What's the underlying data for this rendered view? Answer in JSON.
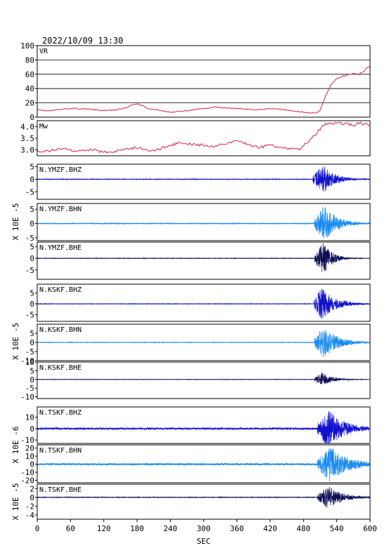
{
  "header": {
    "datetime": "2022/10/09  13:30"
  },
  "colors": {
    "frame": "#000000",
    "grid": "#000000",
    "param_trace": "#d6204a",
    "bhz": "#1010cc",
    "bhn": "#1a8cf0",
    "bhe": "#0c0c55"
  },
  "chart_data": {
    "type": "line",
    "xlabel": "SEC",
    "xlim": [
      0,
      600
    ],
    "xticks": [
      "0",
      "60",
      "120",
      "180",
      "240",
      "300",
      "360",
      "420",
      "480",
      "540",
      "600"
    ],
    "panels": [
      {
        "label": "VR",
        "ylim": [
          0,
          100
        ],
        "yticks": [
          "0",
          "20",
          "40",
          "60",
          "80",
          "100"
        ],
        "grid": true,
        "color_key": "param_trace",
        "series": {
          "name": "VR",
          "x": [
            0,
            20,
            40,
            60,
            80,
            100,
            120,
            140,
            160,
            170,
            180,
            190,
            200,
            220,
            240,
            260,
            280,
            300,
            320,
            340,
            360,
            380,
            400,
            420,
            440,
            460,
            480,
            490,
            500,
            505,
            510,
            515,
            520,
            525,
            530,
            540,
            550,
            560,
            570,
            580,
            590,
            595,
            600
          ],
          "values": [
            10,
            9,
            11,
            12,
            12,
            11,
            9,
            10,
            13,
            17,
            19,
            16,
            12,
            10,
            7,
            8,
            10,
            12,
            14,
            13,
            12,
            11,
            10,
            12,
            11,
            9,
            7,
            6,
            6,
            7,
            10,
            20,
            30,
            38,
            46,
            54,
            57,
            59,
            61,
            60,
            65,
            70,
            71
          ]
        }
      },
      {
        "label": "Mw",
        "ylim": [
          2.75,
          4.25
        ],
        "yticks": [
          "3.0",
          "3.5",
          "4.0"
        ],
        "grid": false,
        "color_key": "param_trace",
        "series": {
          "name": "Mw",
          "x": [
            0,
            20,
            40,
            60,
            80,
            100,
            120,
            140,
            160,
            180,
            200,
            210,
            220,
            240,
            260,
            280,
            300,
            320,
            340,
            360,
            380,
            400,
            420,
            440,
            460,
            470,
            480,
            490,
            500,
            510,
            520,
            530,
            540,
            550,
            560,
            570,
            580,
            590,
            600
          ],
          "values": [
            2.9,
            2.95,
            3.05,
            3.0,
            2.95,
            3.0,
            2.9,
            2.95,
            3.05,
            3.1,
            2.95,
            3.0,
            3.05,
            3.2,
            3.3,
            3.25,
            3.2,
            3.15,
            3.3,
            3.35,
            3.25,
            3.1,
            3.2,
            3.1,
            3.05,
            3.0,
            3.2,
            3.4,
            3.6,
            3.9,
            4.1,
            4.15,
            4.15,
            4.1,
            4.1,
            4.05,
            4.15,
            4.1,
            4.05
          ]
        }
      },
      {
        "label": "N.YMZF.BHZ",
        "unit": "X 10E -5",
        "ylim": [
          -8,
          6
        ],
        "yticks": [
          "5",
          "0",
          "-5"
        ],
        "grid": false,
        "color_key": "bhz",
        "series": {
          "name": "N.YMZF.BHZ",
          "noise": 0.12,
          "onset": 497,
          "peak_x": 515,
          "peak_amp": 6.0,
          "decay": 22
        }
      },
      {
        "label": "N.YMZF.BHN",
        "unit": "X 10E -5",
        "ylim": [
          -6,
          7
        ],
        "yticks": [
          "5",
          "0",
          "-5"
        ],
        "grid": false,
        "color_key": "bhn",
        "series": {
          "name": "N.YMZF.BHN",
          "noise": 0.15,
          "onset": 500,
          "peak_x": 517,
          "peak_amp": 6.5,
          "decay": 24
        }
      },
      {
        "label": "N.YMZF.BHE",
        "unit": "X 10E -5",
        "ylim": [
          -9,
          7
        ],
        "yticks": [
          "5",
          "0",
          "-5"
        ],
        "grid": false,
        "color_key": "bhe",
        "series": {
          "name": "N.YMZF.BHE",
          "noise": 0.1,
          "onset": 500,
          "peak_x": 516,
          "peak_amp": 7.0,
          "decay": 16
        }
      },
      {
        "label": "N.KSKF.BHZ",
        "unit": "X 10E -5",
        "ylim": [
          -8,
          9
        ],
        "yticks": [
          "5",
          "0",
          "-5"
        ],
        "grid": false,
        "color_key": "bhz",
        "series": {
          "name": "N.KSKF.BHZ",
          "noise": 0.12,
          "onset": 499,
          "peak_x": 512,
          "peak_amp": 7.5,
          "decay": 26
        }
      },
      {
        "label": "N.KSKF.BHN",
        "unit": "X 10E -5",
        "ylim": [
          -10,
          10
        ],
        "yticks": [
          "5",
          "0",
          "-5",
          "-10"
        ],
        "grid": false,
        "color_key": "bhn",
        "series": {
          "name": "N.KSKF.BHN",
          "noise": 0.15,
          "onset": 500,
          "peak_x": 516,
          "peak_amp": 9.0,
          "decay": 26
        }
      },
      {
        "label": "N.KSKF.BHE",
        "unit": "X 10E -5",
        "ylim": [
          -11,
          10
        ],
        "yticks": [
          "10",
          "5",
          "0",
          "-5",
          "-10"
        ],
        "grid": false,
        "color_key": "bhe",
        "series": {
          "name": "N.KSKF.BHE",
          "noise": 0.1,
          "onset": 500,
          "peak_x": 513,
          "peak_amp": 4.0,
          "decay": 20
        }
      },
      {
        "label": "N.TSKF.BHZ",
        "unit": "X 10E -6",
        "ylim": [
          -13,
          19
        ],
        "yticks": [
          "10",
          "0",
          "-10"
        ],
        "grid": false,
        "color_key": "bhz",
        "series": {
          "name": "N.TSKF.BHZ",
          "noise": 0.9,
          "onset": 505,
          "peak_x": 525,
          "peak_amp": 17.0,
          "decay": 30
        }
      },
      {
        "label": "N.TSKF.BHN",
        "unit": "X 10E -6",
        "ylim": [
          -23,
          24
        ],
        "yticks": [
          "20",
          "10",
          "0",
          "-10",
          "-20"
        ],
        "grid": false,
        "color_key": "bhn",
        "series": {
          "name": "N.TSKF.BHN",
          "noise": 1.2,
          "onset": 505,
          "peak_x": 528,
          "peak_amp": 22.0,
          "decay": 34
        }
      },
      {
        "label": "N.TSKF.BHE",
        "unit": "X 10E -5",
        "ylim": [
          -5,
          3
        ],
        "yticks": [
          "2",
          "0",
          "-2",
          "-4"
        ],
        "grid": false,
        "color_key": "bhe",
        "series": {
          "name": "N.TSKF.BHE",
          "noise": 0.07,
          "onset": 505,
          "peak_x": 525,
          "peak_amp": 2.7,
          "decay": 26
        }
      }
    ]
  }
}
